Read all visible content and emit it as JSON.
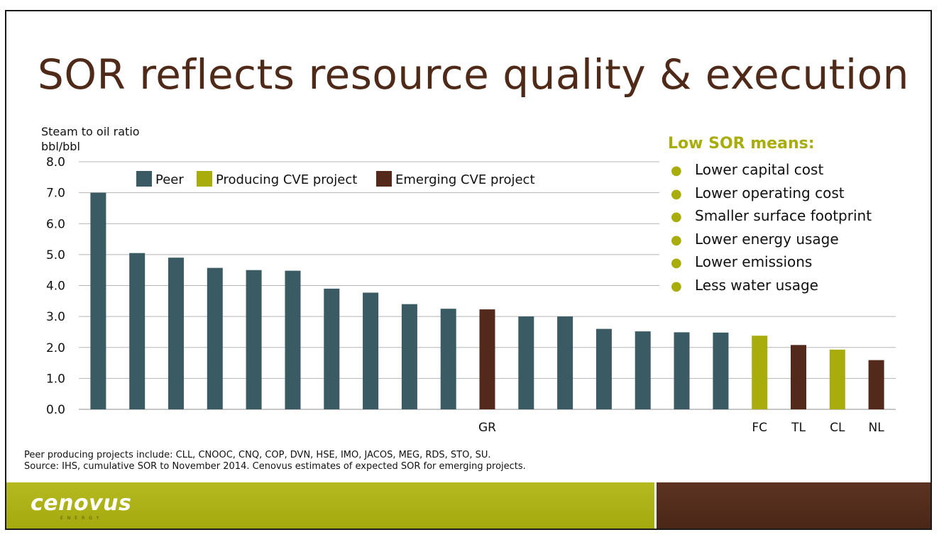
{
  "title": "SOR reflects resource quality & execution",
  "footnotes": [
    "Peer producing projects include: CLL, CNOOC, CNQ, COP, DVN, HSE, IMO, JACOS, MEG, RDS, STO, SU.",
    "Source: IHS, cumulative SOR to November 2014. Cenovus estimates of expected SOR for emerging projects."
  ],
  "logo": "cenovus",
  "logo_subtitle": "ENERGY",
  "low_sor": {
    "title": "Low SOR means:",
    "items": [
      "Lower capital cost",
      "Lower operating cost",
      "Smaller surface footprint",
      "Lower energy usage",
      "Lower emissions",
      "Less water usage"
    ]
  },
  "colors": {
    "peer": "#3a5a64",
    "producing": "#a8ad0b",
    "emerging": "#53291c",
    "title": "#4f2a19"
  },
  "chart_data": {
    "type": "bar",
    "ylabel_lines": [
      "Steam to oil ratio",
      "bbl/bbl"
    ],
    "ylim": [
      0,
      8
    ],
    "yticks": [
      "0.0",
      "1.0",
      "2.0",
      "3.0",
      "4.0",
      "5.0",
      "6.0",
      "7.0",
      "8.0"
    ],
    "grid": true,
    "legend_placement": "top-left",
    "legend": [
      {
        "key": "peer",
        "label": "Peer"
      },
      {
        "key": "producing",
        "label": "Producing CVE project"
      },
      {
        "key": "emerging",
        "label": "Emerging CVE project"
      }
    ],
    "categories": [
      "",
      "",
      "",
      "",
      "",
      "",
      "",
      "",
      "",
      "",
      "GR",
      "",
      "",
      "",
      "",
      "",
      "",
      "FC",
      "TL",
      "CL",
      "NL"
    ],
    "values": [
      7.0,
      5.05,
      4.9,
      4.57,
      4.5,
      4.48,
      3.9,
      3.77,
      3.4,
      3.25,
      3.23,
      3.0,
      3.0,
      2.6,
      2.52,
      2.49,
      2.48,
      2.38,
      2.08,
      1.93,
      1.59
    ],
    "groups": [
      "peer",
      "peer",
      "peer",
      "peer",
      "peer",
      "peer",
      "peer",
      "peer",
      "peer",
      "peer",
      "emerging",
      "peer",
      "peer",
      "peer",
      "peer",
      "peer",
      "peer",
      "producing",
      "emerging",
      "producing",
      "emerging"
    ]
  }
}
